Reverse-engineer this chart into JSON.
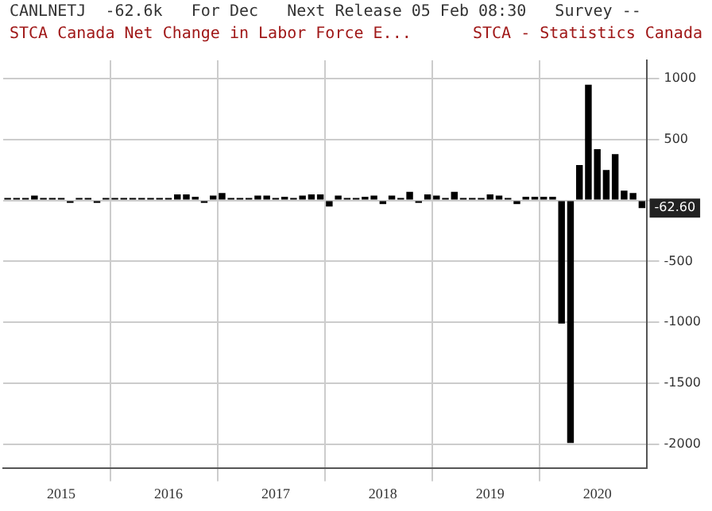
{
  "chart_data": {
    "type": "bar",
    "title": "STCA Canada Net Change in Labor Force E...",
    "subtitle": "CANLNETJ  -62.6k   For Dec   Next Release 05 Feb 08:30   Survey --",
    "annotations": [
      "STCA - Statistics Canada",
      {
        "text": "-62.60",
        "y": -62.6
      }
    ],
    "categories": [
      null,
      null,
      null,
      null,
      null,
      null,
      "2015",
      null,
      null,
      null,
      null,
      null,
      null,
      null,
      null,
      null,
      null,
      null,
      "2016",
      null,
      null,
      null,
      null,
      null,
      null,
      null,
      null,
      null,
      null,
      null,
      "2017",
      null,
      null,
      null,
      null,
      null,
      null,
      null,
      null,
      null,
      null,
      null,
      "2018",
      null,
      null,
      null,
      null,
      null,
      null,
      null,
      null,
      null,
      null,
      null,
      "2019",
      null,
      null,
      null,
      null,
      null,
      null,
      null,
      null,
      null,
      null,
      null,
      "2020",
      null,
      null,
      null,
      null,
      null
    ],
    "values": [
      20,
      20,
      20,
      40,
      20,
      20,
      20,
      -20,
      20,
      20,
      -20,
      20,
      20,
      20,
      20,
      20,
      20,
      20,
      20,
      50,
      50,
      30,
      -20,
      40,
      60,
      20,
      20,
      20,
      40,
      40,
      20,
      30,
      20,
      40,
      50,
      50,
      -50,
      40,
      20,
      20,
      30,
      40,
      -30,
      40,
      20,
      70,
      -20,
      50,
      40,
      20,
      70,
      20,
      20,
      20,
      50,
      40,
      20,
      -30,
      30,
      30,
      30,
      30,
      -1010,
      -1990,
      290,
      950,
      420,
      250,
      380,
      80,
      60,
      -62.6
    ],
    "color": "#000000",
    "ylim": [
      -2200,
      1150
    ],
    "yticks": [
      -2000,
      -1500,
      -1000,
      -500,
      {
        "value": 0,
        "label": null
      },
      500,
      1000
    ],
    "grid": true,
    "legend": false
  }
}
